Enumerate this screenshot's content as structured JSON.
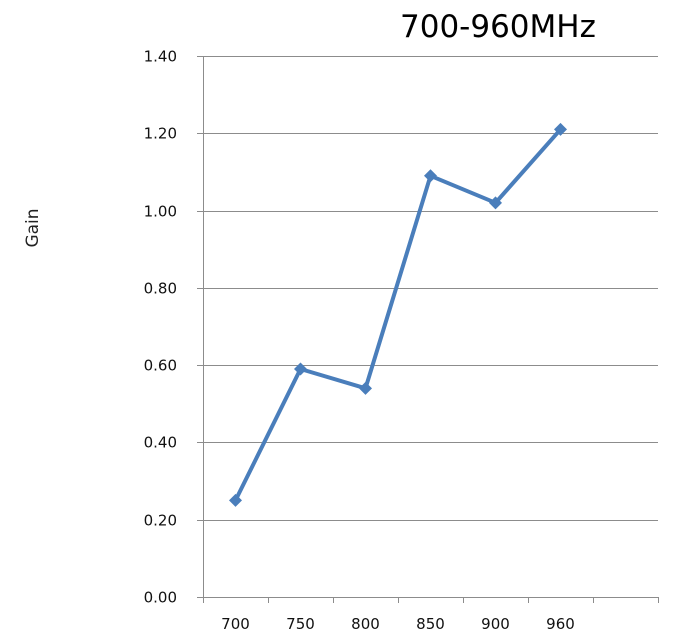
{
  "chart_data": {
    "type": "line",
    "title": "700-960MHz",
    "xlabel": "",
    "ylabel": "Gain",
    "categories": [
      "700",
      "750",
      "800",
      "850",
      "900",
      "960"
    ],
    "series": [
      {
        "values": [
          0.25,
          0.59,
          0.54,
          1.09,
          1.02,
          1.21
        ]
      }
    ],
    "ylim": [
      0,
      1.4
    ],
    "y_ticks": [
      "0.00",
      "0.20",
      "0.40",
      "0.60",
      "0.80",
      "1.00",
      "1.20",
      "1.40"
    ],
    "y_tick_values": [
      0,
      0.2,
      0.4,
      0.6,
      0.8,
      1.0,
      1.2,
      1.4
    ],
    "category_slots": 7,
    "grid": true,
    "legend": "none",
    "marker": "diamond",
    "colors": {
      "series": "#4a7ebb",
      "grid": "#8c8c8c"
    }
  }
}
